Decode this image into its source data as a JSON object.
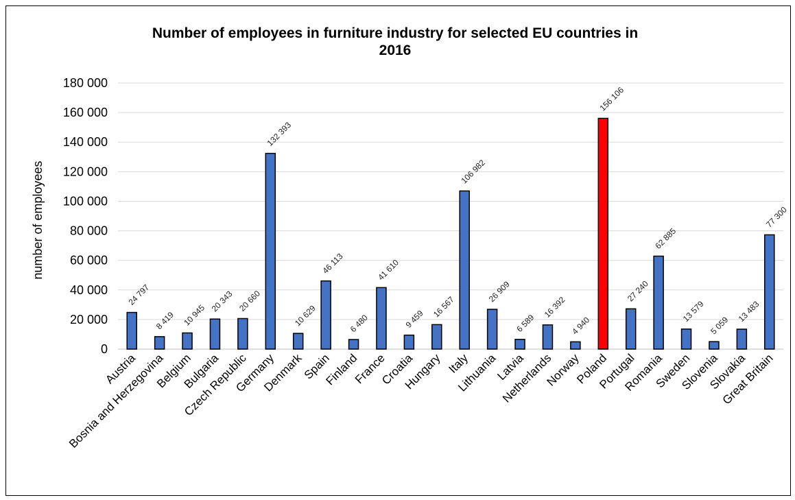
{
  "chart_data": {
    "type": "bar",
    "title_line1": "Number of employees in furniture industry for selected EU countries in",
    "title_line2": "2016",
    "xlabel": "",
    "ylabel": "number of employees",
    "ylim": [
      0,
      180000
    ],
    "yticks": [
      "0",
      "20 000",
      "40 000",
      "60 000",
      "80 000",
      "100 000",
      "120 000",
      "140 000",
      "160 000",
      "180 000"
    ],
    "grid": true,
    "legend": "none",
    "colors": {
      "default": "#4472c4",
      "highlight": "#ff0000",
      "edge": "#000000"
    },
    "highlight": "Poland",
    "categories": [
      "Austria",
      "Bosnia and Herzegovina",
      "Belgium",
      "Bulgaria",
      "Czech Republic",
      "Germany",
      "Denmark",
      "Spain",
      "Finland",
      "France",
      "Croatia",
      "Hungary",
      "Italy",
      "Lithuania",
      "Latvia",
      "Netherlands",
      "Norway",
      "Poland",
      "Portugal",
      "Romania",
      "Sweden",
      "Slovenia",
      "Slovakia",
      "Great Britain"
    ],
    "values": [
      24797,
      8419,
      10945,
      20343,
      20660,
      132393,
      10629,
      46113,
      6480,
      41610,
      9459,
      16567,
      106982,
      26909,
      6589,
      16392,
      4940,
      156106,
      27240,
      62885,
      13579,
      5059,
      13483,
      77300
    ],
    "data_labels": [
      "24 797",
      "8 419",
      "10 945",
      "20 343",
      "20 660",
      "132 393",
      "10 629",
      "46 113",
      "6 480",
      "41 610",
      "9 459",
      "16 567",
      "106 982",
      "26 909",
      "6 589",
      "16 392",
      "4 940",
      "156 106",
      "27 240",
      "62 885",
      "13 579",
      "5 059",
      "13 483",
      "77 300"
    ]
  }
}
